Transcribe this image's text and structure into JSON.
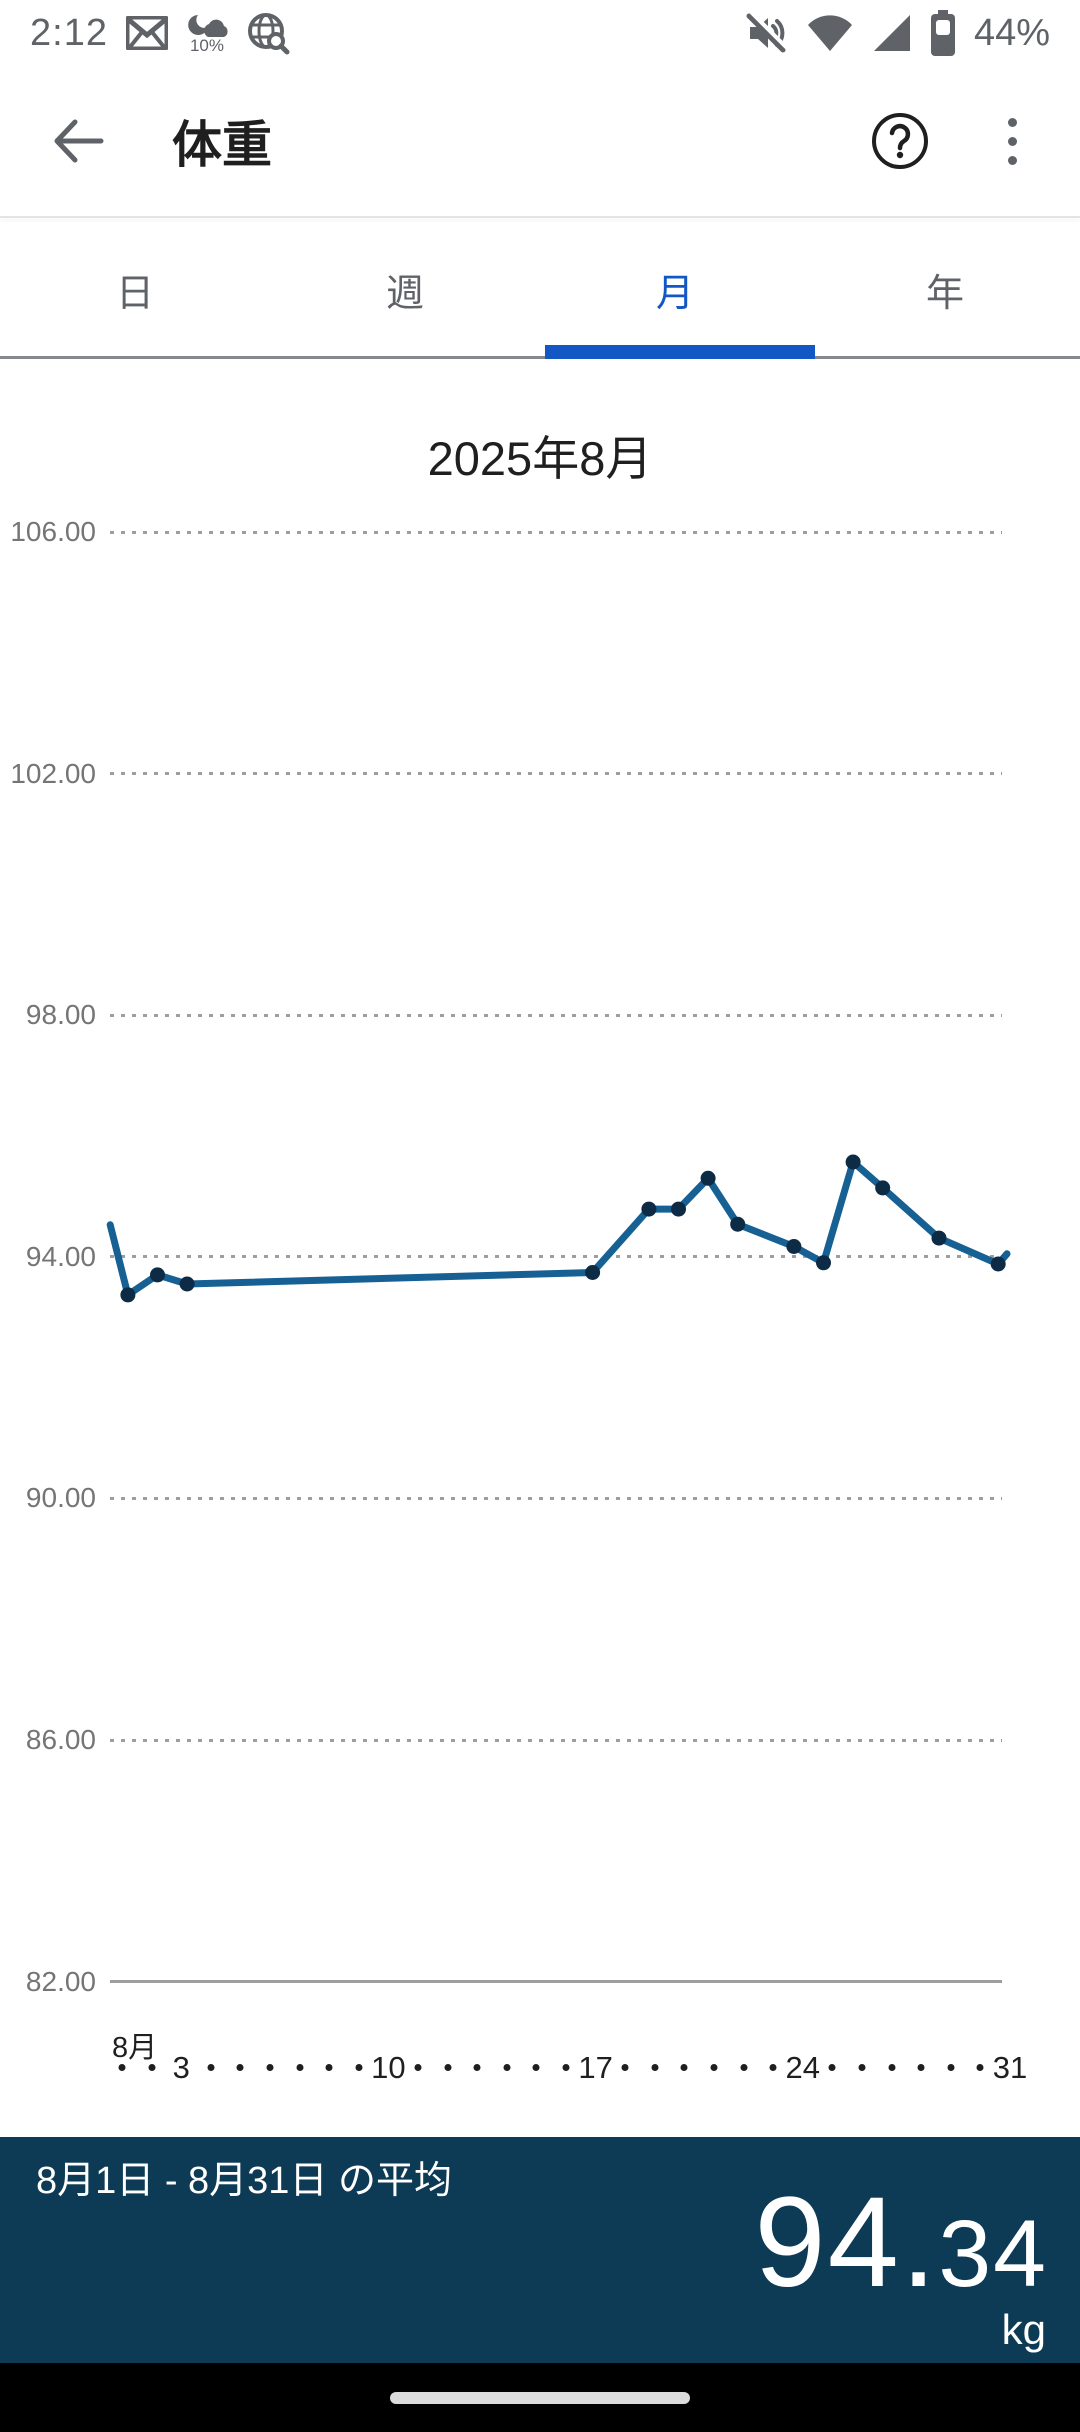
{
  "status_bar": {
    "time": "2:12",
    "weather_percent": "10%",
    "battery_percent": "44%"
  },
  "app_bar": {
    "title": "体重"
  },
  "tabs": {
    "active_color": "#1257c4",
    "items": [
      {
        "label": "日",
        "active": false
      },
      {
        "label": "週",
        "active": false
      },
      {
        "label": "月",
        "active": true
      },
      {
        "label": "年",
        "active": false
      }
    ]
  },
  "chart_data": {
    "type": "line",
    "title": "2025年8月",
    "unit": "kg",
    "ylim": [
      82,
      106
    ],
    "ytick_labels": [
      "106.00",
      "102.00",
      "98.00",
      "94.00",
      "90.00",
      "86.00",
      "82.00"
    ],
    "grid": "horizontal dotted, bottom axis solid",
    "x_month_label": "8月",
    "x_total_days": 31,
    "x_labeled_days": [
      "3",
      "10",
      "17",
      "24",
      "31"
    ],
    "line_color": "#166093",
    "point_color": "#0e2b46",
    "series": [
      {
        "name": "weight_kg",
        "points": [
          {
            "day": 0.6,
            "kg": 94.53,
            "dot": false
          },
          {
            "day": 1.2,
            "kg": 93.37,
            "dot": true
          },
          {
            "day": 2.2,
            "kg": 93.7,
            "dot": true
          },
          {
            "day": 3.2,
            "kg": 93.55,
            "dot": true
          },
          {
            "day": 16.9,
            "kg": 93.74,
            "dot": true
          },
          {
            "day": 18.8,
            "kg": 94.79,
            "dot": true
          },
          {
            "day": 19.8,
            "kg": 94.79,
            "dot": true
          },
          {
            "day": 20.8,
            "kg": 95.3,
            "dot": true
          },
          {
            "day": 21.8,
            "kg": 94.54,
            "dot": true
          },
          {
            "day": 23.7,
            "kg": 94.17,
            "dot": true
          },
          {
            "day": 24.7,
            "kg": 93.9,
            "dot": true
          },
          {
            "day": 25.7,
            "kg": 95.57,
            "dot": true
          },
          {
            "day": 26.7,
            "kg": 95.14,
            "dot": true
          },
          {
            "day": 28.6,
            "kg": 94.31,
            "dot": true
          },
          {
            "day": 30.6,
            "kg": 93.88,
            "dot": true
          },
          {
            "day": 30.9,
            "kg": 94.05,
            "dot": false
          }
        ]
      }
    ]
  },
  "summary": {
    "range_label": "8月1日 - 8月31日 の平均",
    "average": "94.34",
    "average_major": "94.",
    "average_minor": "34",
    "unit": "kg",
    "bg_color": "#0d3a55"
  }
}
